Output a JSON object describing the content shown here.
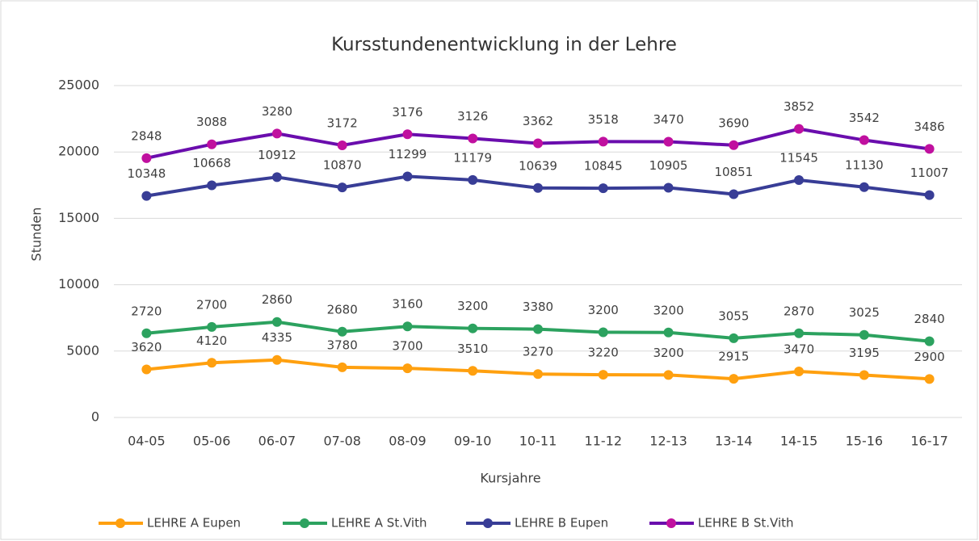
{
  "chart_data": {
    "type": "line",
    "stacked": true,
    "title": "Kursstundenentwicklung in der Lehre",
    "x_label": "Kursjahre",
    "y_label": "Stunden",
    "categories": [
      "04-05",
      "05-06",
      "06-07",
      "07-08",
      "08-09",
      "09-10",
      "10-11",
      "11-12",
      "12-13",
      "13-14",
      "14-15",
      "15-16",
      "16-17"
    ],
    "series": [
      {
        "name": "LEHRE A Eupen",
        "color": "#ffa00f",
        "marker_color": "#ffa00f",
        "values": [
          3620,
          4120,
          4335,
          3780,
          3700,
          3510,
          3270,
          3220,
          3200,
          2915,
          3470,
          3195,
          2900
        ]
      },
      {
        "name": "LEHRE A St.Vith",
        "color": "#2ca25f",
        "marker_color": "#2ca25f",
        "values": [
          2720,
          2700,
          2860,
          2680,
          3160,
          3200,
          3380,
          3200,
          3200,
          3055,
          2870,
          3025,
          2840
        ]
      },
      {
        "name": "LEHRE B Eupen",
        "color": "#383d96",
        "marker_color": "#383d96",
        "values": [
          10348,
          10668,
          10912,
          10870,
          11299,
          11179,
          10639,
          10845,
          10905,
          10851,
          11545,
          11130,
          11007
        ]
      },
      {
        "name": "LEHRE B St.Vith",
        "color": "#6a0dad",
        "marker_color": "#c0109f",
        "values": [
          2848,
          3088,
          3280,
          3172,
          3176,
          3126,
          3362,
          3518,
          3470,
          3690,
          3852,
          3542,
          3486
        ]
      }
    ],
    "ylim": [
      0,
      25000
    ],
    "yticks": [
      0,
      5000,
      10000,
      15000,
      20000,
      25000
    ],
    "grid": true,
    "legend": "bottom"
  }
}
